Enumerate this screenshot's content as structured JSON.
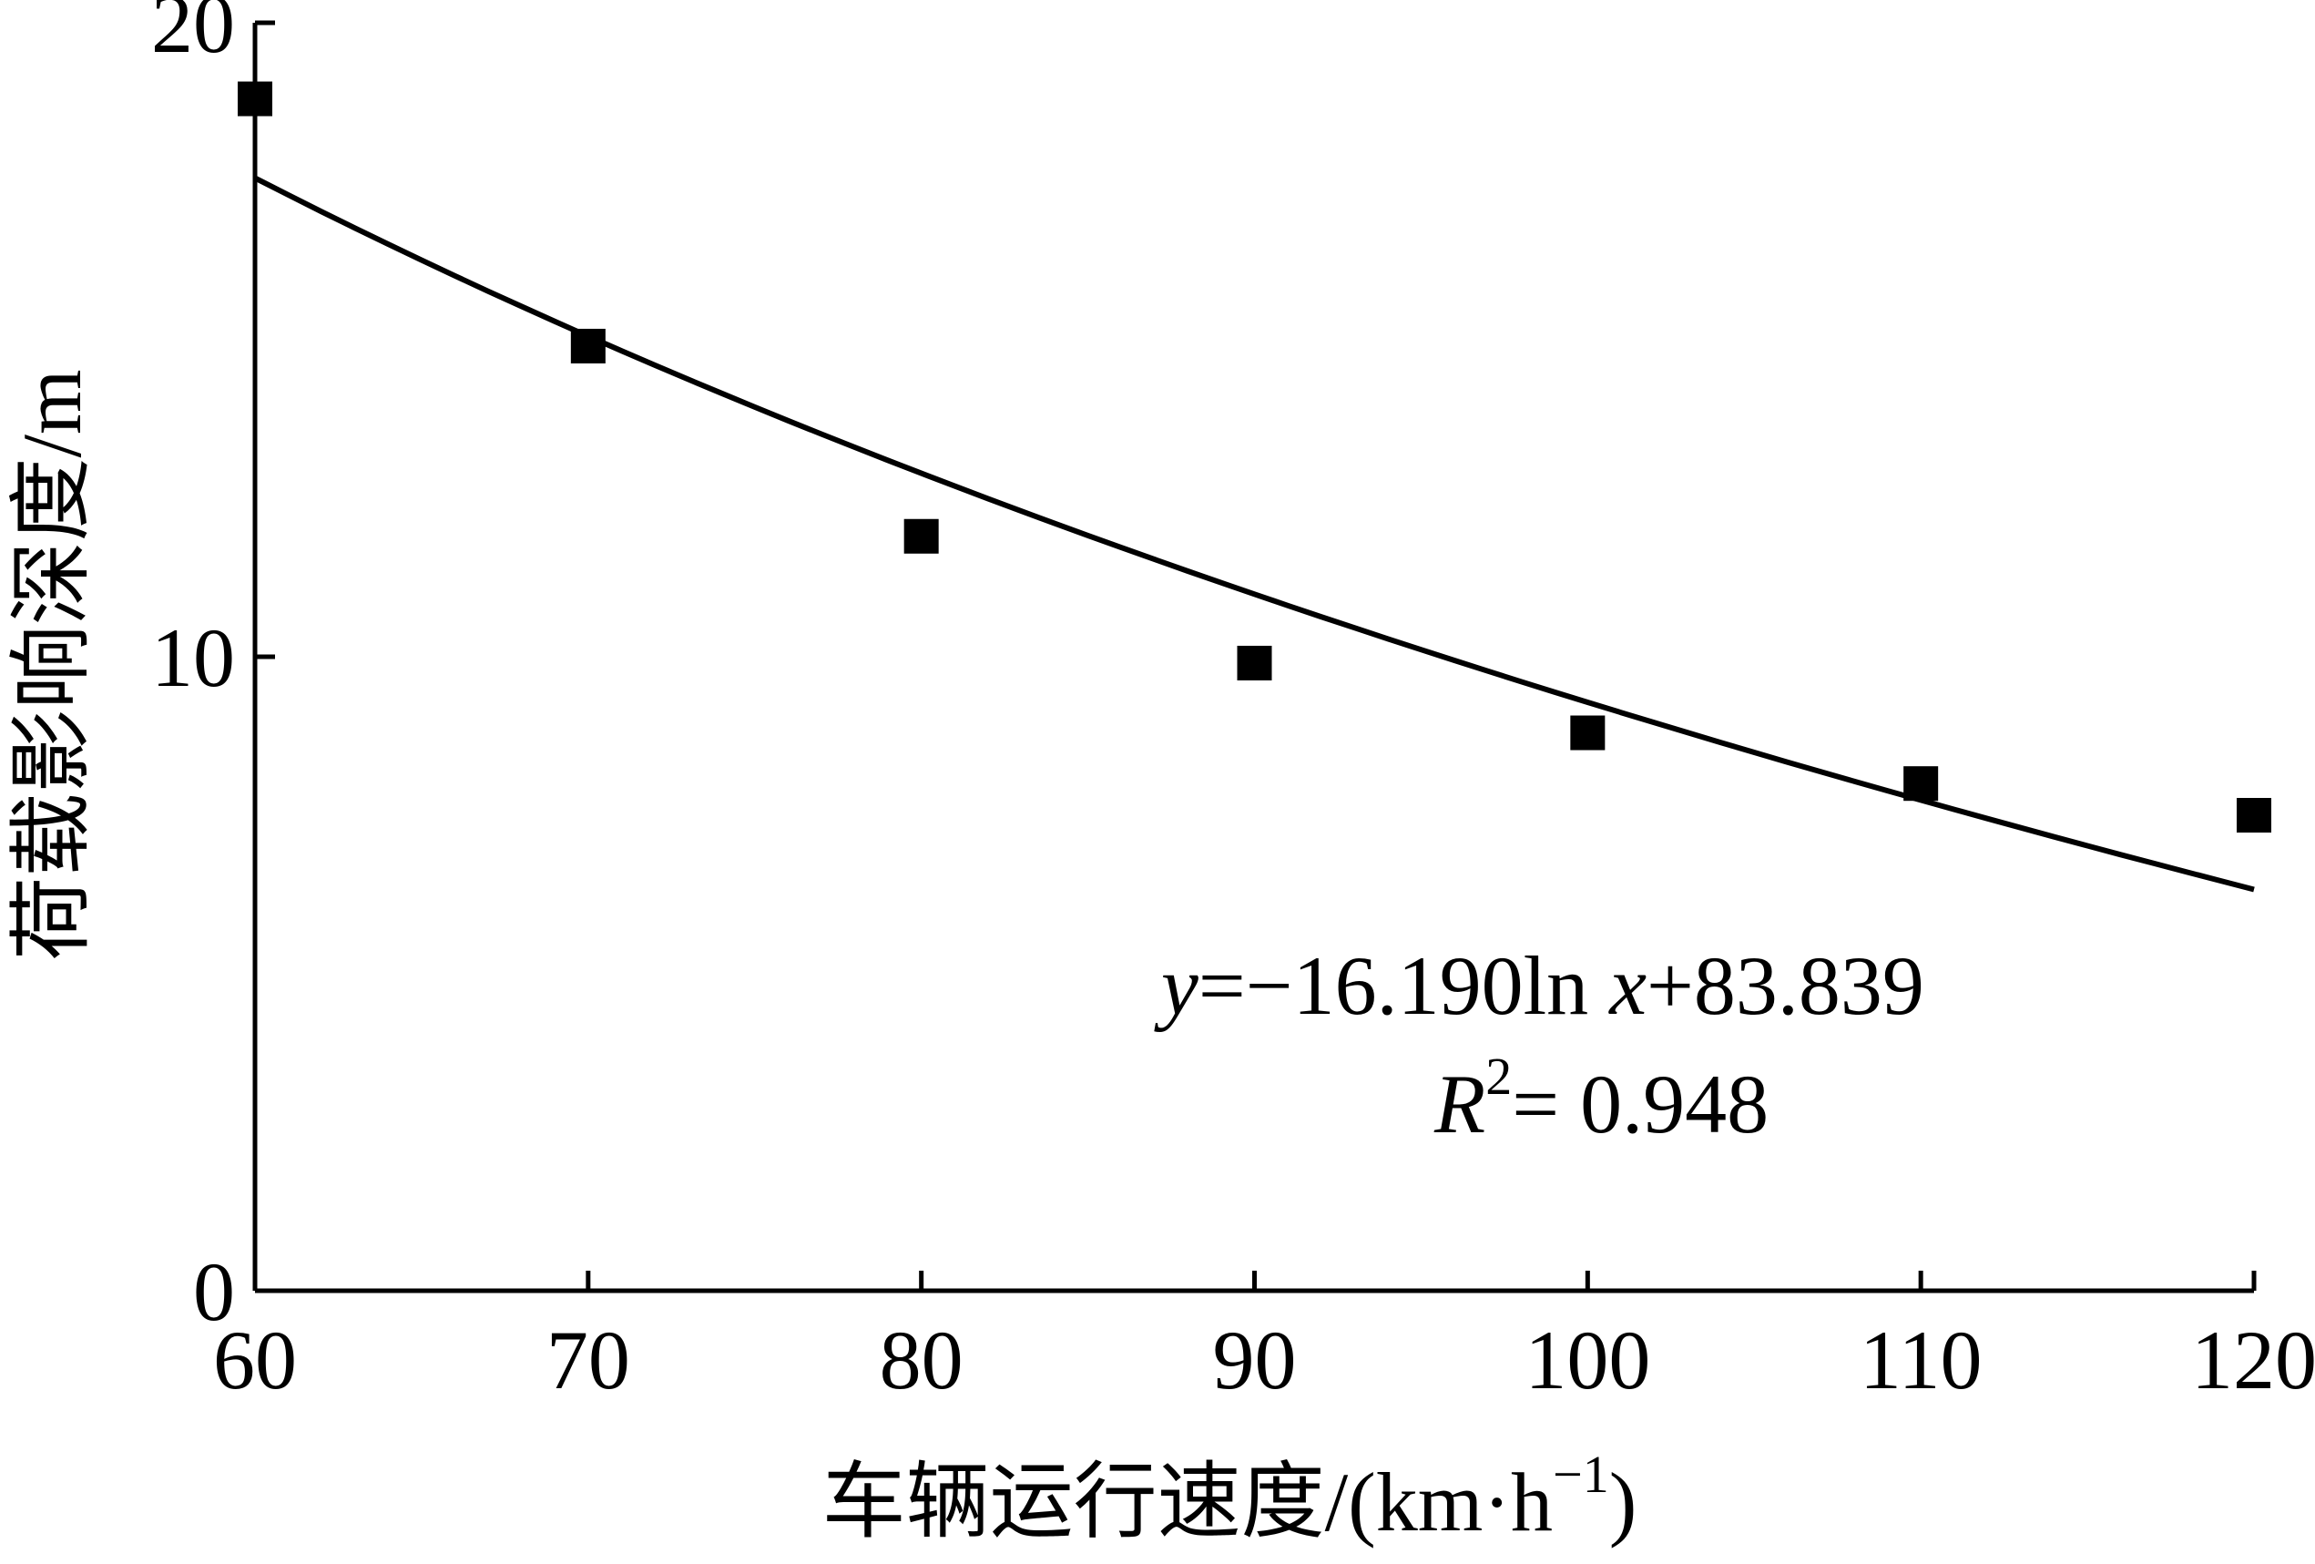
{
  "chart_data": {
    "type": "scatter",
    "xlabel": "车辆运行速度/(km·h",
    "xlabel_sup": "−1",
    "xlabel_close": ")",
    "ylabel": "荷载影响深度/m",
    "xlim": [
      60,
      120
    ],
    "ylim": [
      0,
      20
    ],
    "x_ticks": [
      60,
      70,
      80,
      90,
      100,
      110,
      120
    ],
    "x_tick_labels": [
      "60",
      "70",
      "80",
      "90",
      "100",
      "110",
      "120"
    ],
    "y_ticks": [
      0,
      10,
      20
    ],
    "y_tick_labels": [
      "0",
      "10",
      "20"
    ],
    "series": [
      {
        "marker": "square",
        "color": "#000000",
        "x": [
          60,
          70,
          80,
          90,
          100,
          110,
          120
        ],
        "y": [
          18.8,
          14.9,
          11.9,
          9.9,
          8.8,
          8.0,
          7.5
        ]
      }
    ],
    "fit": {
      "model": "logarithmic",
      "a": -16.19,
      "b": 83.839,
      "color": "#000000"
    },
    "annotation": {
      "eq_y": "y",
      "eq_rest": "=−16.190ln ",
      "eq_x": "x",
      "eq_tail": "+83.839",
      "r_symbol": "R",
      "r_sup": "2",
      "r_value": "= 0.948"
    },
    "grid": false,
    "legend": "none"
  }
}
